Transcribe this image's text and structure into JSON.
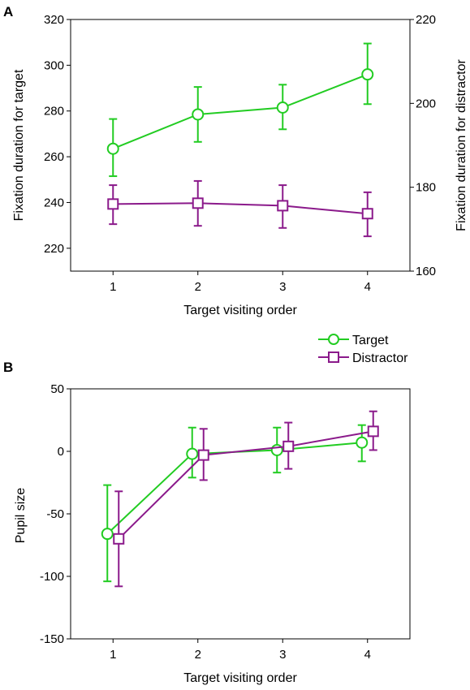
{
  "colors": {
    "target": "#22cc22",
    "distractor": "#8b1a8b",
    "axis": "#000000"
  },
  "legend": {
    "target_label": "Target",
    "distractor_label": "Distractor",
    "placement": "between panels, right"
  },
  "chart_data": [
    {
      "panel_label": "A",
      "type": "line",
      "x": [
        1,
        2,
        3,
        4
      ],
      "xlabel": "Target visiting order",
      "ylabel_left": "Fixation duration for target",
      "ylabel_right": "Fixation duration for distractor",
      "ylim_left": [
        210,
        320
      ],
      "yticks_left": [
        220,
        240,
        260,
        280,
        300,
        320
      ],
      "ylim_right": [
        160,
        220
      ],
      "yticks_right": [
        160,
        180,
        200,
        220
      ],
      "grid": false,
      "series": [
        {
          "name": "Target",
          "axis": "left",
          "marker": "circle",
          "values": [
            263.5,
            278.5,
            281.5,
            296
          ],
          "err_low": [
            251.5,
            266.5,
            272,
            283
          ],
          "err_high": [
            276.5,
            290.5,
            291.5,
            309.5
          ]
        },
        {
          "name": "Distractor",
          "axis": "right",
          "marker": "square",
          "values": [
            176,
            176.2,
            175.6,
            173.7
          ],
          "err_low": [
            171.2,
            170.8,
            170.3,
            168.3
          ],
          "err_high": [
            180.5,
            181.5,
            180.5,
            178.8
          ]
        }
      ]
    },
    {
      "panel_label": "B",
      "type": "line",
      "x": [
        1,
        2,
        3,
        4
      ],
      "xlabel": "Target visiting order",
      "ylabel": "Pupil size",
      "ylim": [
        -150,
        50
      ],
      "yticks": [
        -150,
        -100,
        -50,
        0,
        50
      ],
      "grid": false,
      "series": [
        {
          "name": "Target",
          "marker": "circle",
          "values": [
            -66,
            -2,
            1,
            7
          ],
          "err_low": [
            -104,
            -21,
            -17,
            -8
          ],
          "err_high": [
            -27,
            19,
            19,
            21
          ]
        },
        {
          "name": "Distractor",
          "marker": "square",
          "values": [
            -70,
            -3,
            4,
            16
          ],
          "err_low": [
            -108,
            -23,
            -14,
            1
          ],
          "err_high": [
            -32,
            18,
            23,
            32
          ]
        }
      ]
    }
  ]
}
